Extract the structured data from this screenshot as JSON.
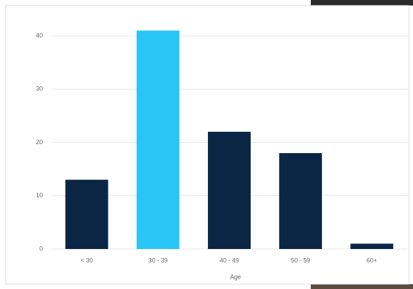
{
  "chart_data": {
    "type": "bar",
    "x_label": "Age",
    "categories": [
      "< 30",
      "30 - 39",
      "40 - 49",
      "50 - 59",
      "60+"
    ],
    "values": [
      13,
      41,
      22,
      18,
      1
    ],
    "colors": [
      "#0b2545",
      "#29c5f6",
      "#0b2545",
      "#0b2545",
      "#0b2545"
    ],
    "ylim": [
      0,
      40
    ],
    "yticks": [
      0,
      10,
      20,
      30,
      40
    ],
    "grid": true
  }
}
